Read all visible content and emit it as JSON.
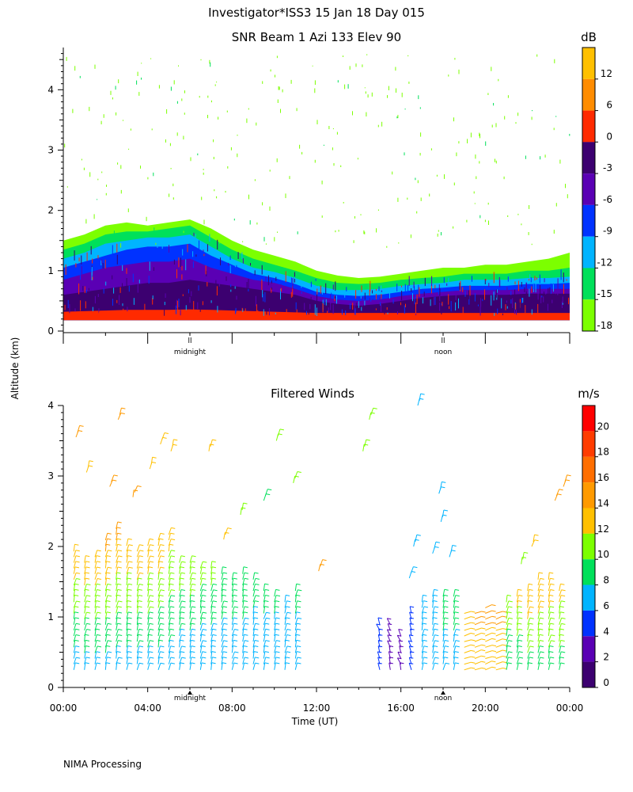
{
  "header": {
    "title": "Investigator*ISS3   15 Jan 18 Day 015"
  },
  "footer": {
    "text": "NIMA Processing"
  },
  "shared": {
    "ylabel": "Altitude (km)",
    "midnight_label": "midnight",
    "noon_label": "noon",
    "midnight_marker": "ll",
    "noon_marker": "ll"
  },
  "chart_data": [
    {
      "type": "heatmap",
      "title": "SNR Beam 1 Azi 133 Elev 90",
      "ylim": [
        0,
        4.7
      ],
      "yticks": [
        0,
        1,
        2,
        3,
        4
      ],
      "xlim": [
        0,
        24
      ],
      "colorbar": {
        "unit": "dB",
        "ticks": [
          "12",
          "6",
          "0",
          "-3",
          "-6",
          "-9",
          "-12",
          "-15",
          "-18"
        ],
        "colors": [
          "#ffc000",
          "#ff8c00",
          "#ff2a00",
          "#3c0070",
          "#5a00b4",
          "#0032ff",
          "#00b4ff",
          "#00e05a",
          "#7cff00"
        ]
      },
      "layers": [
        {
          "label": "-18",
          "color": "#7cff00",
          "top": [
            1.5,
            1.6,
            1.75,
            1.8,
            1.75,
            1.8,
            1.85,
            1.7,
            1.5,
            1.35,
            1.25,
            1.15,
            1.0,
            0.92,
            0.88,
            0.9,
            0.95,
            1.0,
            1.05,
            1.05,
            1.1,
            1.1,
            1.15,
            1.2,
            1.3
          ]
        },
        {
          "label": "-15",
          "color": "#00e05a",
          "top": [
            1.35,
            1.45,
            1.6,
            1.65,
            1.65,
            1.7,
            1.75,
            1.55,
            1.35,
            1.2,
            1.1,
            1.0,
            0.88,
            0.8,
            0.78,
            0.8,
            0.85,
            0.88,
            0.9,
            0.95,
            0.95,
            0.95,
            1.0,
            1.0,
            1.05
          ]
        },
        {
          "label": "-12",
          "color": "#00b4ff",
          "top": [
            1.2,
            1.3,
            1.45,
            1.5,
            1.55,
            1.55,
            1.6,
            1.4,
            1.2,
            1.05,
            0.98,
            0.88,
            0.75,
            0.68,
            0.68,
            0.7,
            0.75,
            0.78,
            0.8,
            0.85,
            0.85,
            0.85,
            0.88,
            0.88,
            0.9
          ]
        },
        {
          "label": "-9",
          "color": "#0032ff",
          "top": [
            1.05,
            1.15,
            1.25,
            1.35,
            1.4,
            1.4,
            1.45,
            1.25,
            1.1,
            0.95,
            0.88,
            0.78,
            0.65,
            0.6,
            0.58,
            0.6,
            0.65,
            0.7,
            0.72,
            0.75,
            0.75,
            0.75,
            0.78,
            0.78,
            0.8
          ]
        },
        {
          "label": "-6",
          "color": "#5a00b4",
          "top": [
            0.85,
            0.95,
            1.05,
            1.1,
            1.15,
            1.15,
            1.2,
            1.05,
            0.95,
            0.85,
            0.8,
            0.7,
            0.58,
            0.52,
            0.5,
            0.52,
            0.58,
            0.62,
            0.65,
            0.68,
            0.68,
            0.68,
            0.7,
            0.7,
            0.7
          ]
        },
        {
          "label": "-3",
          "color": "#3c0070",
          "top": [
            0.6,
            0.65,
            0.7,
            0.75,
            0.8,
            0.8,
            0.85,
            0.8,
            0.75,
            0.7,
            0.65,
            0.6,
            0.5,
            0.45,
            0.42,
            0.45,
            0.5,
            0.55,
            0.58,
            0.6,
            0.6,
            0.6,
            0.62,
            0.62,
            0.62
          ]
        },
        {
          "label": "0",
          "color": "#ff2a00",
          "top": [
            0.32,
            0.33,
            0.34,
            0.35,
            0.35,
            0.35,
            0.36,
            0.35,
            0.34,
            0.33,
            0.32,
            0.31,
            0.3,
            0.3,
            0.3,
            0.3,
            0.3,
            0.3,
            0.3,
            0.3,
            0.3,
            0.3,
            0.3,
            0.3,
            0.3
          ]
        }
      ],
      "layer_bottom": 0.18,
      "annotations": [
        "midnight",
        "noon"
      ]
    },
    {
      "type": "scatter",
      "title": "Filtered Winds",
      "xlabel": "Time (UT)",
      "ylabel": "Altitude (km)",
      "xlim": [
        0,
        24
      ],
      "ylim": [
        0,
        4
      ],
      "xticks": [
        "00:00",
        "04:00",
        "08:00",
        "12:00",
        "16:00",
        "20:00",
        "00:00"
      ],
      "yticks": [
        0,
        1,
        2,
        3,
        4
      ],
      "colorbar": {
        "unit": "m/s",
        "ticks": [
          "20",
          "18",
          "16",
          "14",
          "12",
          "10",
          "8",
          "6",
          "4",
          "2",
          "0"
        ],
        "colors": [
          "#ff0000",
          "#ff3c00",
          "#ff6e00",
          "#ff9a00",
          "#ffc000",
          "#7cff00",
          "#00e05a",
          "#00b4ff",
          "#0032ff",
          "#5a00b4",
          "#3c0070",
          "#000000"
        ]
      },
      "profiles": [
        {
          "t": 0.5,
          "ytop": 1.95,
          "speed_low": 7,
          "speed_high": 14
        },
        {
          "t": 1.0,
          "ytop": 1.85,
          "speed_low": 7,
          "speed_high": 14
        },
        {
          "t": 1.5,
          "ytop": 1.9,
          "speed_low": 7,
          "speed_high": 14
        },
        {
          "t": 2.0,
          "ytop": 2.1,
          "speed_low": 7,
          "speed_high": 15
        },
        {
          "t": 2.5,
          "ytop": 2.3,
          "speed_low": 7,
          "speed_high": 15
        },
        {
          "t": 3.0,
          "ytop": 2.05,
          "speed_low": 7,
          "speed_high": 14
        },
        {
          "t": 3.5,
          "ytop": 2.0,
          "speed_low": 7,
          "speed_high": 14
        },
        {
          "t": 4.0,
          "ytop": 2.05,
          "speed_low": 7,
          "speed_high": 14
        },
        {
          "t": 4.5,
          "ytop": 2.15,
          "speed_low": 7,
          "speed_high": 14
        },
        {
          "t": 5.0,
          "ytop": 2.2,
          "speed_low": 7,
          "speed_high": 13
        },
        {
          "t": 5.5,
          "ytop": 1.85,
          "speed_low": 6,
          "speed_high": 12
        },
        {
          "t": 6.0,
          "ytop": 1.8,
          "speed_low": 6,
          "speed_high": 12
        },
        {
          "t": 6.5,
          "ytop": 1.75,
          "speed_low": 6,
          "speed_high": 11
        },
        {
          "t": 7.0,
          "ytop": 1.7,
          "speed_low": 6,
          "speed_high": 11
        },
        {
          "t": 7.5,
          "ytop": 1.65,
          "speed_low": 6,
          "speed_high": 10
        },
        {
          "t": 8.0,
          "ytop": 1.55,
          "speed_low": 6,
          "speed_high": 10
        },
        {
          "t": 8.5,
          "ytop": 1.65,
          "speed_low": 6,
          "speed_high": 10
        },
        {
          "t": 9.0,
          "ytop": 1.55,
          "speed_low": 6,
          "speed_high": 9
        },
        {
          "t": 9.5,
          "ytop": 1.45,
          "speed_low": 6,
          "speed_high": 9
        },
        {
          "t": 10.0,
          "ytop": 1.35,
          "speed_low": 6,
          "speed_high": 9
        },
        {
          "t": 10.5,
          "ytop": 1.25,
          "speed_low": 6,
          "speed_high": 8
        },
        {
          "t": 11.0,
          "ytop": 1.45,
          "speed_low": 6,
          "speed_high": 9
        },
        {
          "t": 15.0,
          "ytop": 0.9,
          "speed_low": 4,
          "speed_high": 4
        },
        {
          "t": 15.5,
          "ytop": 0.95,
          "speed_low": 3,
          "speed_high": 4
        },
        {
          "t": 16.0,
          "ytop": 0.8,
          "speed_low": 3,
          "speed_high": 4
        },
        {
          "t": 16.5,
          "ytop": 1.1,
          "speed_low": 4,
          "speed_high": 5
        },
        {
          "t": 17.0,
          "ytop": 1.25,
          "speed_low": 6,
          "speed_high": 7
        },
        {
          "t": 17.5,
          "ytop": 1.3,
          "speed_low": 6,
          "speed_high": 8
        },
        {
          "t": 18.0,
          "ytop": 1.35,
          "speed_low": 7,
          "speed_high": 9
        },
        {
          "t": 18.5,
          "ytop": 1.3,
          "speed_low": 7,
          "speed_high": 9
        },
        {
          "t": 19.0,
          "ytop": 1.1,
          "speed_low": 12,
          "speed_high": 14
        },
        {
          "t": 19.5,
          "ytop": 1.1,
          "speed_low": 12,
          "speed_high": 15
        },
        {
          "t": 20.0,
          "ytop": 1.15,
          "speed_low": 12,
          "speed_high": 15
        },
        {
          "t": 20.5,
          "ytop": 1.1,
          "speed_low": 12,
          "speed_high": 15
        },
        {
          "t": 21.0,
          "ytop": 1.25,
          "speed_low": 8,
          "speed_high": 12
        },
        {
          "t": 21.5,
          "ytop": 1.35,
          "speed_low": 8,
          "speed_high": 13
        },
        {
          "t": 22.0,
          "ytop": 1.45,
          "speed_low": 9,
          "speed_high": 14
        },
        {
          "t": 22.5,
          "ytop": 1.55,
          "speed_low": 9,
          "speed_high": 14
        },
        {
          "t": 23.0,
          "ytop": 1.6,
          "speed_low": 9,
          "speed_high": 14
        },
        {
          "t": 23.5,
          "ytop": 1.45,
          "speed_low": 9,
          "speed_high": 13
        }
      ],
      "scattered_barbs": [
        {
          "t": 0.6,
          "alt": 3.55,
          "speed": 14
        },
        {
          "t": 1.1,
          "alt": 3.05,
          "speed": 13
        },
        {
          "t": 2.2,
          "alt": 2.85,
          "speed": 14
        },
        {
          "t": 2.6,
          "alt": 3.8,
          "speed": 15
        },
        {
          "t": 3.3,
          "alt": 2.7,
          "speed": 14
        },
        {
          "t": 4.1,
          "alt": 3.1,
          "speed": 13
        },
        {
          "t": 4.6,
          "alt": 3.45,
          "speed": 13
        },
        {
          "t": 5.1,
          "alt": 3.35,
          "speed": 13
        },
        {
          "t": 6.9,
          "alt": 3.35,
          "speed": 13
        },
        {
          "t": 7.6,
          "alt": 2.1,
          "speed": 12
        },
        {
          "t": 8.4,
          "alt": 2.45,
          "speed": 10
        },
        {
          "t": 9.5,
          "alt": 2.65,
          "speed": 9
        },
        {
          "t": 10.1,
          "alt": 3.5,
          "speed": 10
        },
        {
          "t": 10.9,
          "alt": 2.9,
          "speed": 10
        },
        {
          "t": 12.1,
          "alt": 1.65,
          "speed": 14
        },
        {
          "t": 14.2,
          "alt": 3.35,
          "speed": 11
        },
        {
          "t": 14.5,
          "alt": 3.8,
          "speed": 11
        },
        {
          "t": 16.4,
          "alt": 1.55,
          "speed": 6
        },
        {
          "t": 16.6,
          "alt": 2.0,
          "speed": 6
        },
        {
          "t": 16.8,
          "alt": 4.0,
          "speed": 6
        },
        {
          "t": 17.5,
          "alt": 1.9,
          "speed": 7
        },
        {
          "t": 17.8,
          "alt": 2.75,
          "speed": 6
        },
        {
          "t": 17.9,
          "alt": 2.35,
          "speed": 6
        },
        {
          "t": 18.3,
          "alt": 1.85,
          "speed": 7
        },
        {
          "t": 21.7,
          "alt": 1.75,
          "speed": 11
        },
        {
          "t": 22.2,
          "alt": 2.0,
          "speed": 12
        },
        {
          "t": 23.3,
          "alt": 2.65,
          "speed": 14
        },
        {
          "t": 23.7,
          "alt": 2.85,
          "speed": 15
        }
      ],
      "annotations": [
        "midnight",
        "noon"
      ]
    }
  ]
}
